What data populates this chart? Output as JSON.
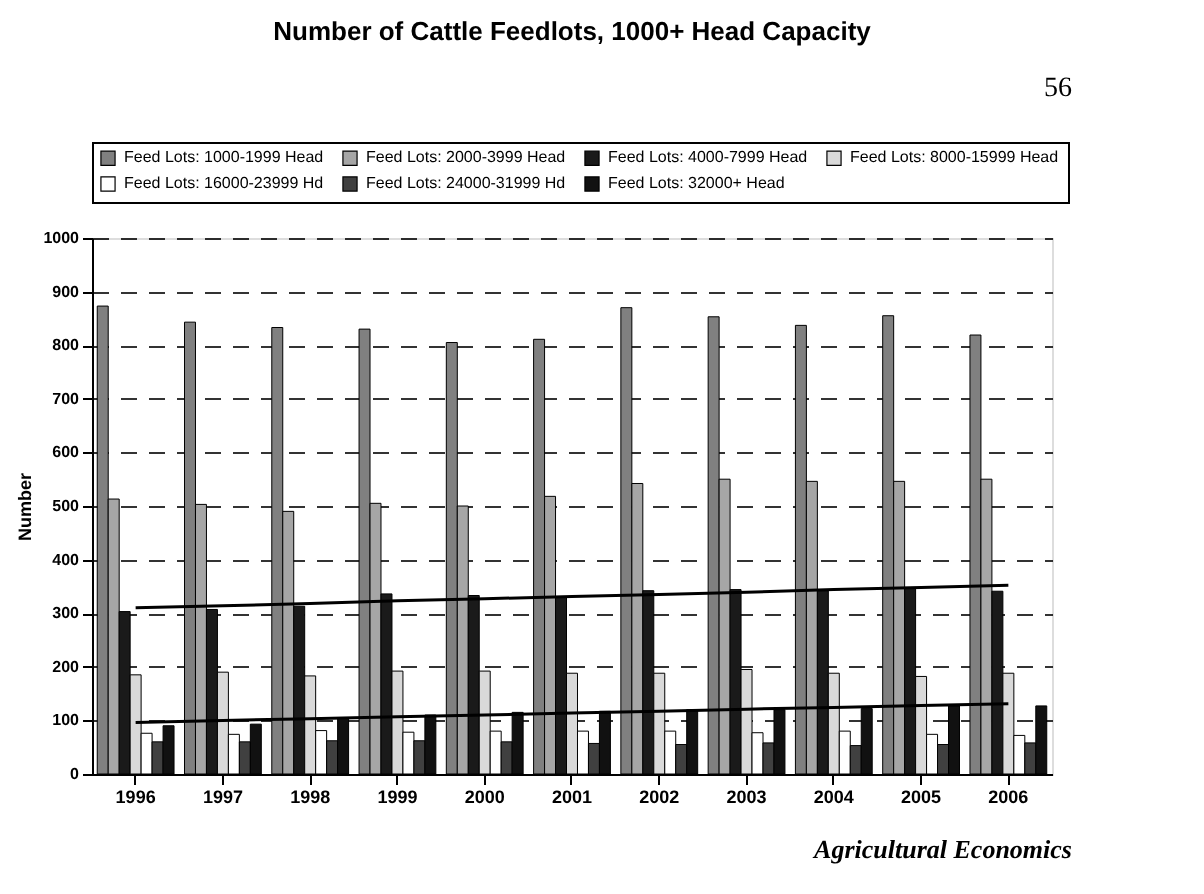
{
  "chart_data": {
    "type": "bar",
    "title": "Number of Cattle Feedlots, 1000+ Head Capacity",
    "ylabel": "Number",
    "categories": [
      "1996",
      "1997",
      "1998",
      "1999",
      "2000",
      "2001",
      "2002",
      "2003",
      "2004",
      "2005",
      "2006"
    ],
    "series": [
      {
        "name": "Feed Lots: 1000-1999 Head",
        "color": "#808080",
        "values": [
          873,
          843,
          833,
          830,
          805,
          811,
          870,
          853,
          837,
          855,
          819
        ]
      },
      {
        "name": "Feed Lots: 2000-3999 Head",
        "color": "#a6a6a6",
        "values": [
          513,
          503,
          490,
          505,
          500,
          518,
          542,
          550,
          546,
          546,
          550
        ]
      },
      {
        "name": "Feed Lots: 4000-7999 Head",
        "color": "#1a1a1a",
        "values": [
          303,
          307,
          313,
          336,
          333,
          330,
          342,
          344,
          342,
          347,
          341
        ]
      },
      {
        "name": "Feed Lots: 8000-15999 Head",
        "color": "#d9d9d9",
        "values": [
          185,
          190,
          183,
          192,
          192,
          188,
          188,
          195,
          188,
          182,
          188
        ]
      },
      {
        "name": "Feed Lots: 16000-23999 Hd",
        "color": "#ffffff",
        "values": [
          76,
          74,
          81,
          78,
          80,
          80,
          80,
          77,
          80,
          74,
          72
        ]
      },
      {
        "name": "Feed Lots: 24000-31999 Hd",
        "color": "#404040",
        "values": [
          60,
          60,
          62,
          62,
          60,
          57,
          55,
          58,
          53,
          55,
          58
        ]
      },
      {
        "name": "Feed Lots: 32000+ Head",
        "color": "#111111",
        "values": [
          90,
          93,
          105,
          110,
          115,
          117,
          120,
          120,
          122,
          127,
          127
        ]
      },
      {
        "type": "line",
        "color": "#000000",
        "values": [
          310,
          314,
          318,
          323,
          327,
          331,
          335,
          339,
          344,
          348,
          352
        ]
      },
      {
        "type": "line",
        "color": "#000000",
        "values": [
          96,
          100,
          103,
          107,
          110,
          114,
          117,
          121,
          124,
          128,
          131
        ]
      }
    ],
    "ylim": [
      0,
      1000
    ],
    "yticks": [
      0,
      100,
      200,
      300,
      400,
      500,
      600,
      700,
      800,
      900,
      1000
    ],
    "grid": "y",
    "legend": "top",
    "line_style": "solid",
    "annotations": [
      "56",
      "Agricultural Economics"
    ]
  }
}
